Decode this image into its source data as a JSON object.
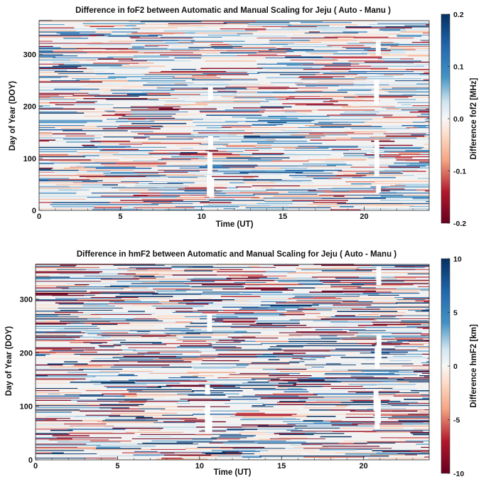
{
  "chart_data": [
    {
      "type": "heatmap",
      "title": "Difference in foF2 between Automatic and Manual Scaling for Jeju ( Auto - Manu )",
      "xlabel": "Time (UT)",
      "ylabel": "Day of Year (DOY)",
      "colorbar_label": "Difference fof2 [MHz]",
      "xlim": [
        0,
        24
      ],
      "ylim": [
        0,
        365
      ],
      "x_ticks": [
        "0",
        "5",
        "10",
        "15",
        "20"
      ],
      "y_ticks": [
        "0",
        "100",
        "200",
        "300"
      ],
      "clim": [
        -0.2,
        0.2
      ],
      "colorbar_ticks": [
        "0.2",
        "0.1",
        "0.0",
        "-0.1",
        "-0.2"
      ],
      "colormap": "RdBu",
      "grid": false,
      "data_gaps_ut": [
        [
          10.3,
          10.8
        ],
        [
          20.6,
          21.1
        ]
      ]
    },
    {
      "type": "heatmap",
      "title": "Difference in hmF2 between Automatic and Manual Scaling for Jeju ( Auto - Manu )",
      "xlabel": "Time (UT)",
      "ylabel": "Day of Year (DOY)",
      "colorbar_label": "Difference hmF2 [km]",
      "xlim": [
        0,
        24
      ],
      "ylim": [
        0,
        365
      ],
      "x_ticks": [
        "0",
        "5",
        "10",
        "15",
        "20"
      ],
      "y_ticks": [
        "0",
        "100",
        "200",
        "300"
      ],
      "clim": [
        -10,
        10
      ],
      "colorbar_ticks": [
        "10",
        "5",
        "0",
        "-5",
        "-10"
      ],
      "colormap": "RdBu",
      "grid": false,
      "data_gaps_ut": [
        [
          10.3,
          10.8
        ],
        [
          20.6,
          21.1
        ]
      ]
    }
  ],
  "colors": {
    "neg_max": "#67001f",
    "neg": "#d6604d",
    "neutral": "#f7f7f7",
    "pos": "#4393c3",
    "pos_max": "#053061"
  }
}
